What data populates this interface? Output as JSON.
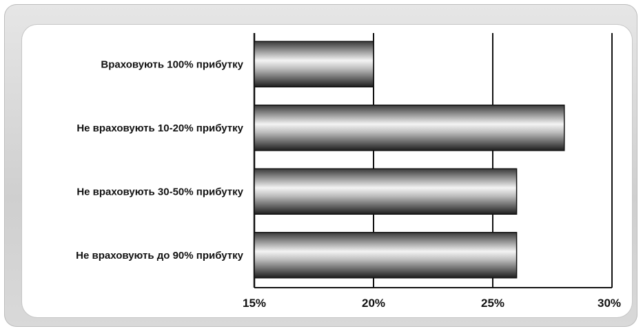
{
  "chart_data": {
    "type": "bar",
    "orientation": "horizontal",
    "categories": [
      "Враховують 100% прибутку",
      "Не враховують 10-20% прибутку",
      "Не враховують 30-50% прибутку",
      "Не враховують до 90% прибутку"
    ],
    "values": [
      20,
      28,
      26,
      26
    ],
    "xlim": [
      15,
      30
    ],
    "xticks": [
      15,
      20,
      25,
      30
    ],
    "xtick_labels": [
      "15%",
      "20%",
      "25%",
      "30%"
    ],
    "grid": "vertical",
    "legend": "none",
    "bar_fill": "metallic-gray-gradient"
  }
}
